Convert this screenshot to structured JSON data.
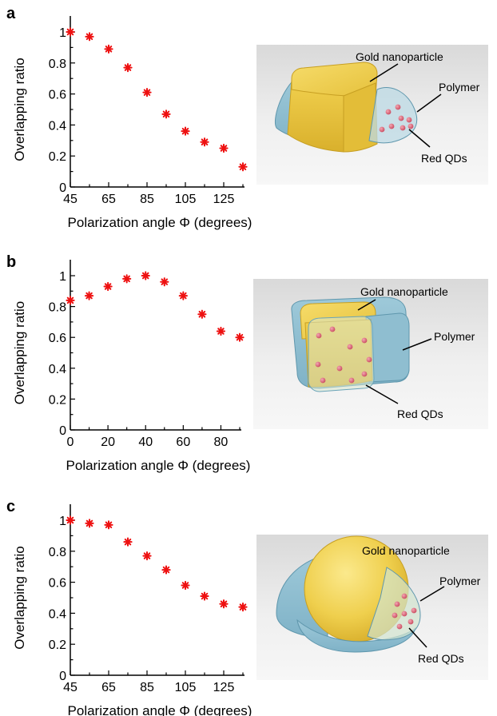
{
  "panels": [
    {
      "letter": "a",
      "illustration": {
        "shape": "cube",
        "labels": {
          "gold": "Gold nanoparticle",
          "polymer": "Polymer",
          "qds": "Red QDs"
        }
      },
      "chart_data": {
        "type": "scatter",
        "xlabel": "Polarization angle Φ (degrees)",
        "ylabel": "Overlapping ratio",
        "xlim": [
          45,
          135
        ],
        "ylim": [
          0,
          1
        ],
        "xticks": [
          45,
          65,
          85,
          105,
          125
        ],
        "yticks": [
          0,
          0.2,
          0.4,
          0.6,
          0.8,
          1
        ],
        "ytick_labels": [
          "0",
          "0.2",
          "0.4",
          "0.6",
          "0.8",
          "1"
        ],
        "marker_color": "#ee1111",
        "x": [
          45,
          55,
          65,
          75,
          85,
          95,
          105,
          115,
          125,
          135
        ],
        "y": [
          1.0,
          0.97,
          0.89,
          0.77,
          0.61,
          0.47,
          0.36,
          0.29,
          0.25,
          0.13
        ]
      }
    },
    {
      "letter": "b",
      "illustration": {
        "shape": "cube",
        "labels": {
          "gold": "Gold nanoparticle",
          "polymer": "Polymer",
          "qds": "Red QDs"
        }
      },
      "chart_data": {
        "type": "scatter",
        "xlabel": "Polarization angle Φ (degrees)",
        "ylabel": "Overlapping ratio",
        "xlim": [
          0,
          90
        ],
        "ylim": [
          0,
          1
        ],
        "xticks": [
          0,
          20,
          40,
          60,
          80
        ],
        "yticks": [
          0,
          0.2,
          0.4,
          0.6,
          0.8,
          1
        ],
        "ytick_labels": [
          "0",
          "0.2",
          "0.4",
          "0.6",
          "0.8",
          "1"
        ],
        "marker_color": "#ee1111",
        "x": [
          0,
          10,
          20,
          30,
          40,
          50,
          60,
          70,
          80,
          90
        ],
        "y": [
          0.84,
          0.87,
          0.93,
          0.98,
          1.0,
          0.96,
          0.87,
          0.75,
          0.64,
          0.6
        ]
      }
    },
    {
      "letter": "c",
      "illustration": {
        "shape": "sphere",
        "labels": {
          "gold": "Gold nanoparticle",
          "polymer": "Polymer",
          "qds": "Red QDs"
        }
      },
      "chart_data": {
        "type": "scatter",
        "xlabel": "Polarization angle Φ (degrees)",
        "ylabel": "Overlapping ratio",
        "xlim": [
          45,
          135
        ],
        "ylim": [
          0,
          1
        ],
        "xticks": [
          45,
          65,
          85,
          105,
          125
        ],
        "yticks": [
          0,
          0.2,
          0.4,
          0.6,
          0.8,
          1
        ],
        "ytick_labels": [
          "0",
          "0.2",
          "0.4",
          "0.6",
          "0.8",
          "1"
        ],
        "marker_color": "#ee1111",
        "x": [
          45,
          55,
          65,
          75,
          85,
          95,
          105,
          115,
          125,
          135
        ],
        "y": [
          1.0,
          0.98,
          0.97,
          0.86,
          0.77,
          0.68,
          0.58,
          0.51,
          0.46,
          0.44
        ]
      }
    }
  ]
}
